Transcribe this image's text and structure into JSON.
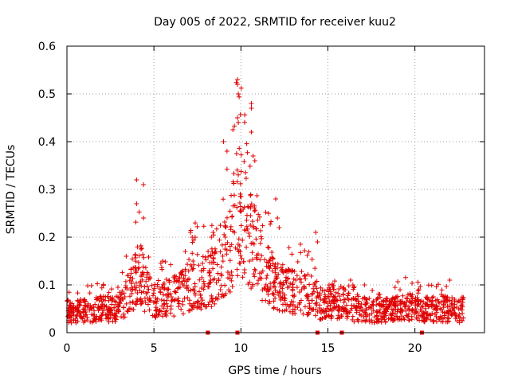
{
  "chart_data": {
    "type": "scatter",
    "title": "Day 005 of 2022, SRMTID for receiver kuu2",
    "xlabel": "GPS time / hours",
    "ylabel": "SRMTID / TECUs",
    "xlim": [
      0,
      24
    ],
    "ylim": [
      0,
      0.6
    ],
    "grid": true,
    "marker": "+",
    "marker_color": "#e00000",
    "x_ticks": [
      0,
      5,
      10,
      15,
      20
    ],
    "x_tick_labels": [
      "0",
      "5",
      "10",
      "15",
      "20"
    ],
    "y_ticks": [
      0,
      0.1,
      0.2,
      0.3,
      0.4,
      0.5,
      0.6
    ],
    "y_tick_labels": [
      "0",
      "0.1",
      "0.2",
      "0.3",
      "0.4",
      "0.5",
      "0.6"
    ],
    "zero_markers_x": [
      8.1,
      9.8,
      14.4,
      15.8,
      20.4
    ],
    "series": [
      {
        "name": "SRMTID",
        "profile_x": [
          0.0,
          1.0,
          2.0,
          3.0,
          3.5,
          4.0,
          4.2,
          4.5,
          5.0,
          5.5,
          6.0,
          6.5,
          7.0,
          7.5,
          8.0,
          8.5,
          9.0,
          9.3,
          9.6,
          9.8,
          10.0,
          10.3,
          10.6,
          11.0,
          11.5,
          12.0,
          12.5,
          13.0,
          13.5,
          14.0,
          14.5,
          15.0,
          15.5,
          16.0,
          16.5,
          17.0,
          17.5,
          18.0,
          18.5,
          19.0,
          19.5,
          20.0,
          20.5,
          21.0,
          21.5,
          22.0,
          22.5,
          22.8
        ],
        "profile_y": [
          0.045,
          0.045,
          0.05,
          0.05,
          0.08,
          0.12,
          0.13,
          0.09,
          0.065,
          0.07,
          0.075,
          0.08,
          0.1,
          0.11,
          0.11,
          0.115,
          0.14,
          0.17,
          0.22,
          0.26,
          0.25,
          0.22,
          0.19,
          0.15,
          0.12,
          0.1,
          0.09,
          0.085,
          0.085,
          0.08,
          0.06,
          0.065,
          0.065,
          0.06,
          0.05,
          0.05,
          0.045,
          0.045,
          0.045,
          0.05,
          0.055,
          0.05,
          0.045,
          0.05,
          0.05,
          0.05,
          0.045,
          0.05
        ],
        "points_count": 1600,
        "outliers": [
          {
            "x": 4.0,
            "y": 0.32
          },
          {
            "x": 4.0,
            "y": 0.27
          },
          {
            "x": 4.4,
            "y": 0.31
          },
          {
            "x": 4.4,
            "y": 0.24
          },
          {
            "x": 9.8,
            "y": 0.53
          },
          {
            "x": 9.8,
            "y": 0.52
          },
          {
            "x": 9.85,
            "y": 0.5
          },
          {
            "x": 9.8,
            "y": 0.45
          },
          {
            "x": 9.85,
            "y": 0.44
          },
          {
            "x": 10.6,
            "y": 0.48
          },
          {
            "x": 10.6,
            "y": 0.47
          },
          {
            "x": 10.6,
            "y": 0.42
          },
          {
            "x": 9.0,
            "y": 0.4
          },
          {
            "x": 9.2,
            "y": 0.38
          },
          {
            "x": 10.8,
            "y": 0.36
          },
          {
            "x": 10.7,
            "y": 0.37
          },
          {
            "x": 12.0,
            "y": 0.28
          },
          {
            "x": 12.1,
            "y": 0.24
          },
          {
            "x": 12.2,
            "y": 0.22
          },
          {
            "x": 14.3,
            "y": 0.21
          },
          {
            "x": 14.4,
            "y": 0.19
          },
          {
            "x": 7.1,
            "y": 0.21
          },
          {
            "x": 7.2,
            "y": 0.2
          },
          {
            "x": 8.4,
            "y": 0.21
          },
          {
            "x": 8.3,
            "y": 0.2
          },
          {
            "x": 5.5,
            "y": 0.15
          },
          {
            "x": 6.8,
            "y": 0.17
          },
          {
            "x": 22.0,
            "y": 0.11
          },
          {
            "x": 16.3,
            "y": 0.11
          },
          {
            "x": 17.1,
            "y": 0.1
          }
        ]
      }
    ]
  }
}
